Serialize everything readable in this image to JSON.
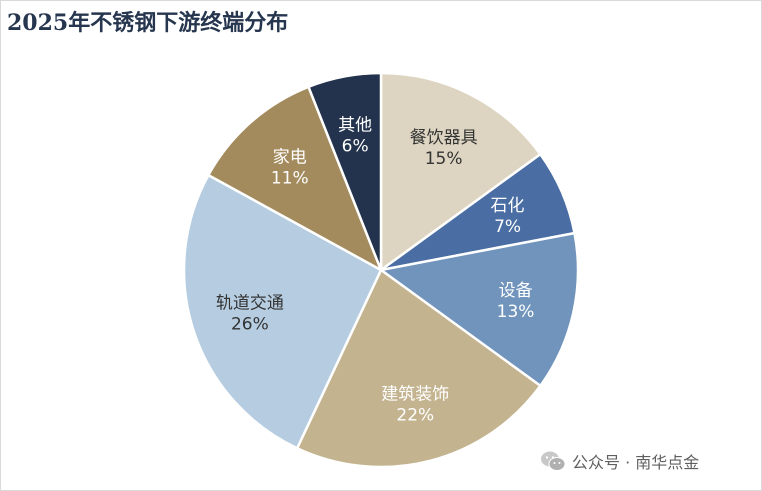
{
  "chart_data": {
    "type": "pie",
    "title": "2025年不锈钢下游终端分布",
    "slices": [
      {
        "label": "餐饮器具",
        "value": 15,
        "display": "15%",
        "color": "#ddd5c1",
        "text_color": "#333333"
      },
      {
        "label": "石化",
        "value": 7,
        "display": "7%",
        "color": "#4a6ea3",
        "text_color": "#ffffff"
      },
      {
        "label": "设备",
        "value": 13,
        "display": "13%",
        "color": "#7094bb",
        "text_color": "#ffffff"
      },
      {
        "label": "建筑装饰",
        "value": 22,
        "display": "22%",
        "color": "#c3b38f",
        "text_color": "#ffffff"
      },
      {
        "label": "轨道交通",
        "value": 26,
        "display": "26%",
        "color": "#b6cde1",
        "text_color": "#333333"
      },
      {
        "label": "家电",
        "value": 11,
        "display": "11%",
        "color": "#a38b5d",
        "text_color": "#ffffff"
      },
      {
        "label": "其他",
        "value": 6,
        "display": "6%",
        "color": "#23324d",
        "text_color": "#ffffff"
      }
    ],
    "start": "12 o'clock",
    "direction": "clockwise",
    "legend": "none"
  },
  "watermark": {
    "text": "公众号 · 南华点金",
    "icon": "wechat-icon"
  }
}
